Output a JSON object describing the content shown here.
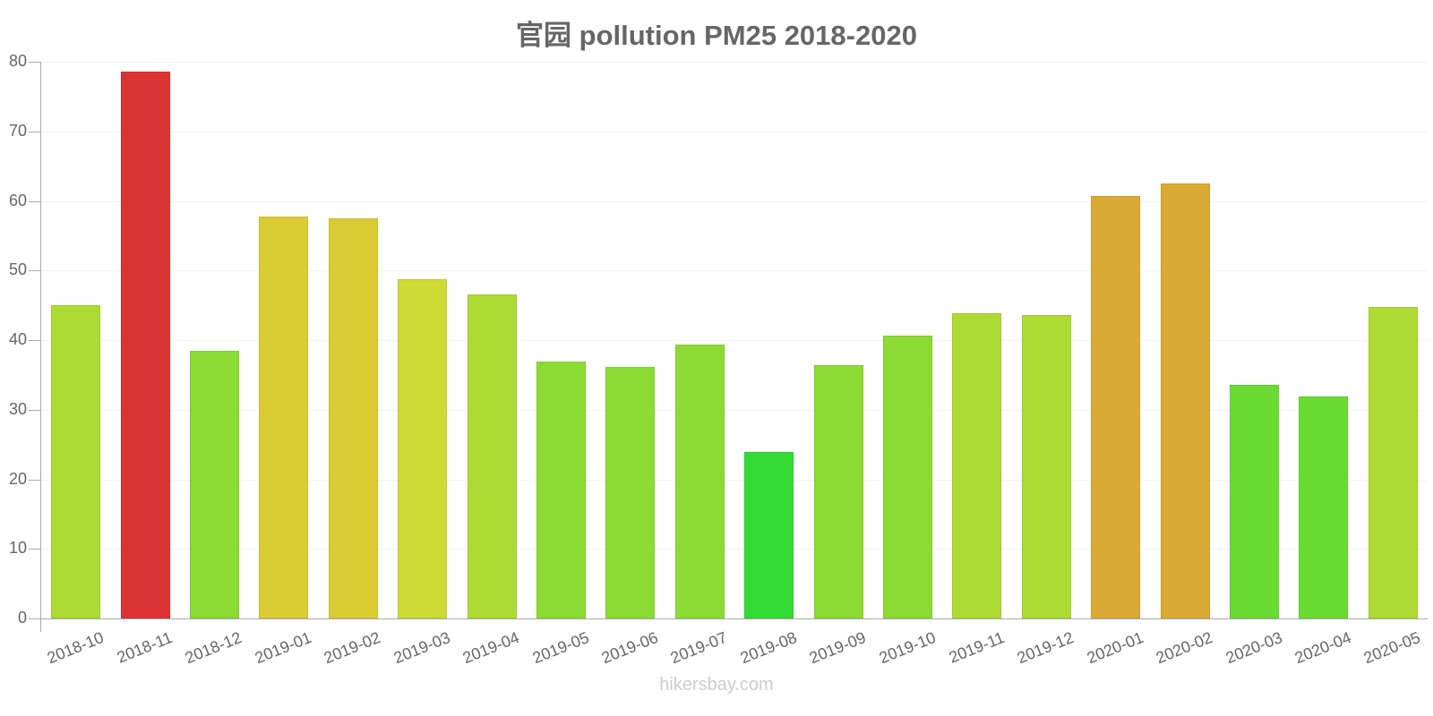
{
  "title": "官园 pollution PM25 2018-2020",
  "watermark": "hikersbay.com",
  "colors": {
    "very_high": "#db3434",
    "high": "#dbaa34",
    "elevated": "#dbcb34",
    "moderate": "#cddb34",
    "fair": "#addb34",
    "good": "#8cdb34",
    "very_good": "#6bdb34",
    "excellent": "#34db34"
  },
  "chart_data": {
    "type": "bar",
    "title": "官园 pollution PM25 2018-2020",
    "xlabel": "",
    "ylabel": "",
    "ylim": [
      0,
      80
    ],
    "yticks": [
      0,
      10,
      20,
      30,
      40,
      50,
      60,
      70,
      80
    ],
    "grid": true,
    "legend": null,
    "categories": [
      "2018-10",
      "2018-11",
      "2018-12",
      "2019-01",
      "2019-02",
      "2019-03",
      "2019-04",
      "2019-05",
      "2019-06",
      "2019-07",
      "2019-08",
      "2019-09",
      "2019-10",
      "2019-11",
      "2019-12",
      "2020-01",
      "2020-02",
      "2020-03",
      "2020-04",
      "2020-05"
    ],
    "values": [
      45,
      78.6,
      38.5,
      57.7,
      57.5,
      48.7,
      46.6,
      36.9,
      36.1,
      39.4,
      23.9,
      36.4,
      40.6,
      43.9,
      43.6,
      60.7,
      62.5,
      33.6,
      31.9,
      44.8
    ],
    "bar_colors": [
      "#addb34",
      "#db3434",
      "#8cdb34",
      "#dbcb34",
      "#dbcb34",
      "#cddb34",
      "#addb34",
      "#8cdb34",
      "#8cdb34",
      "#8cdb34",
      "#34db34",
      "#8cdb34",
      "#8cdb34",
      "#addb34",
      "#addb34",
      "#dbaa34",
      "#dbaa34",
      "#6bdb34",
      "#6bdb34",
      "#addb34"
    ]
  }
}
